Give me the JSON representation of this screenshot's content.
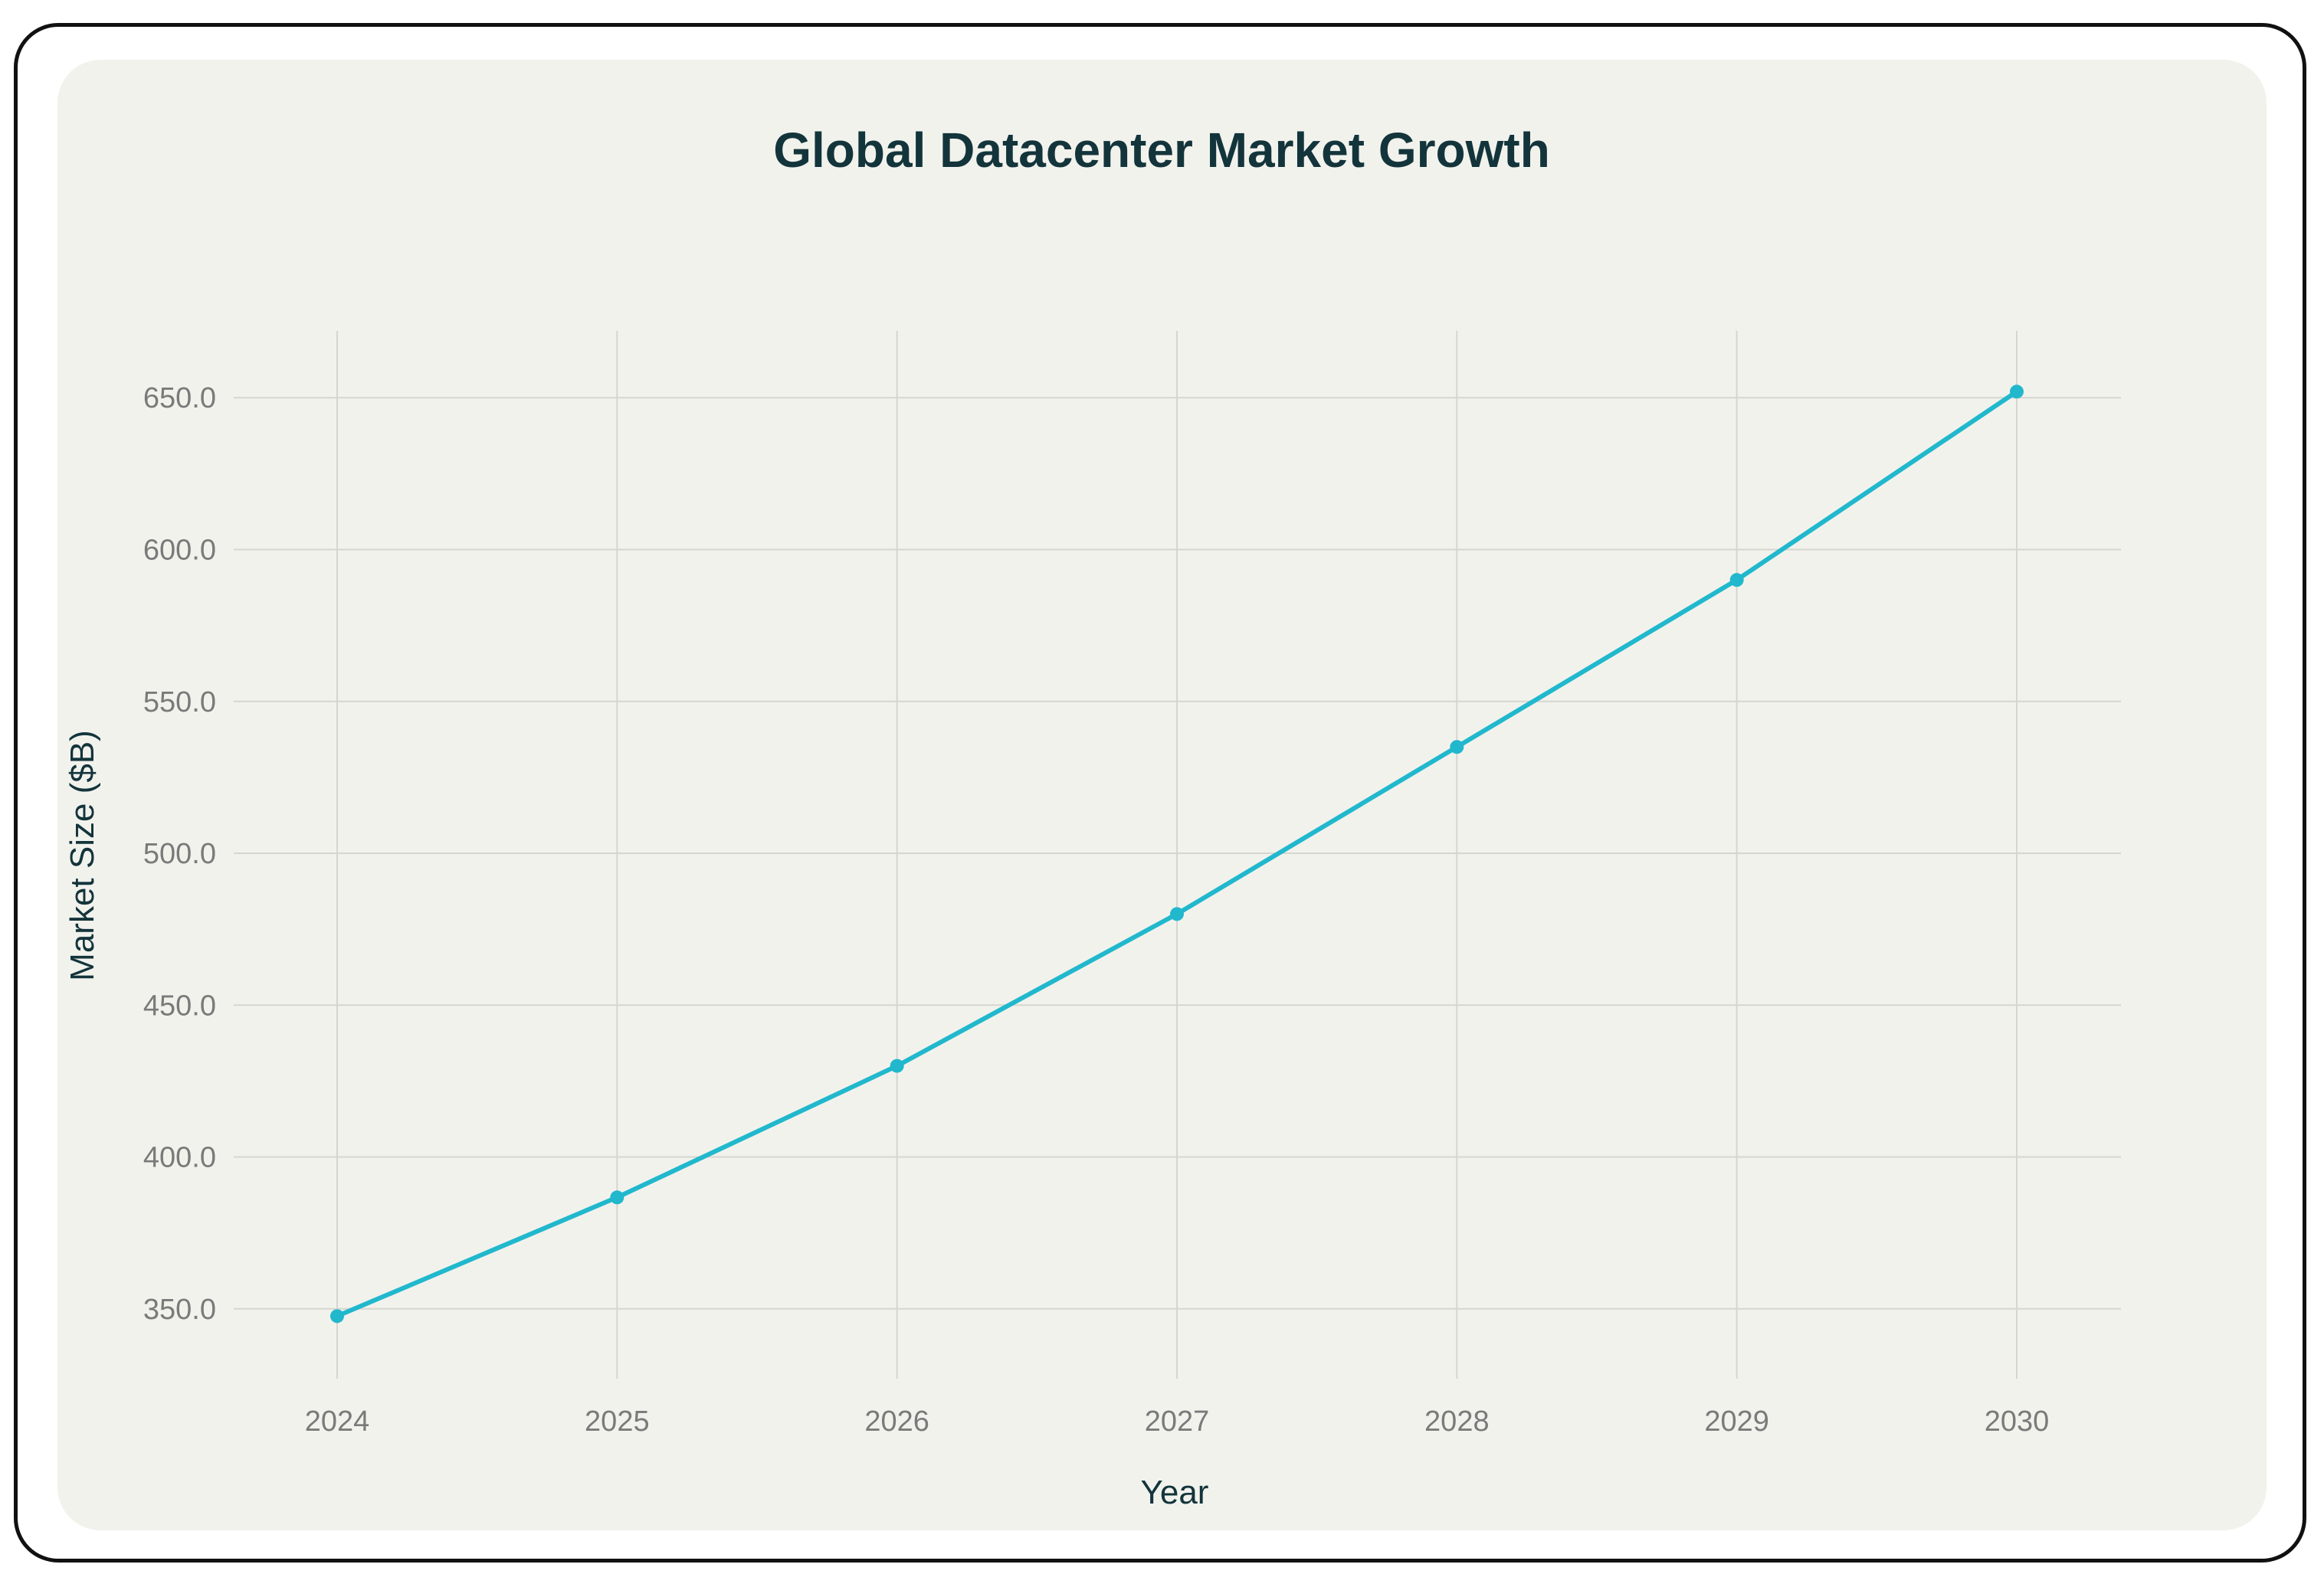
{
  "chart_data": {
    "type": "line",
    "title": "Global Datacenter Market Growth",
    "xlabel": "Year",
    "ylabel": "Market Size ($B)",
    "x": [
      "2024",
      "2025",
      "2026",
      "2027",
      "2028",
      "2029",
      "2030"
    ],
    "series": [
      {
        "values": [
          347.6,
          386.7,
          430.0,
          480.0,
          535.0,
          590.0,
          652.0
        ]
      }
    ],
    "yticks": [
      "350.0",
      "400.0",
      "450.0",
      "500.0",
      "550.0",
      "600.0",
      "650.0"
    ],
    "ylim": [
      327,
      672
    ],
    "grid": true,
    "line_color": "#21b8cd",
    "background_color": "#f2f2ed",
    "title_color": "#13343b"
  }
}
